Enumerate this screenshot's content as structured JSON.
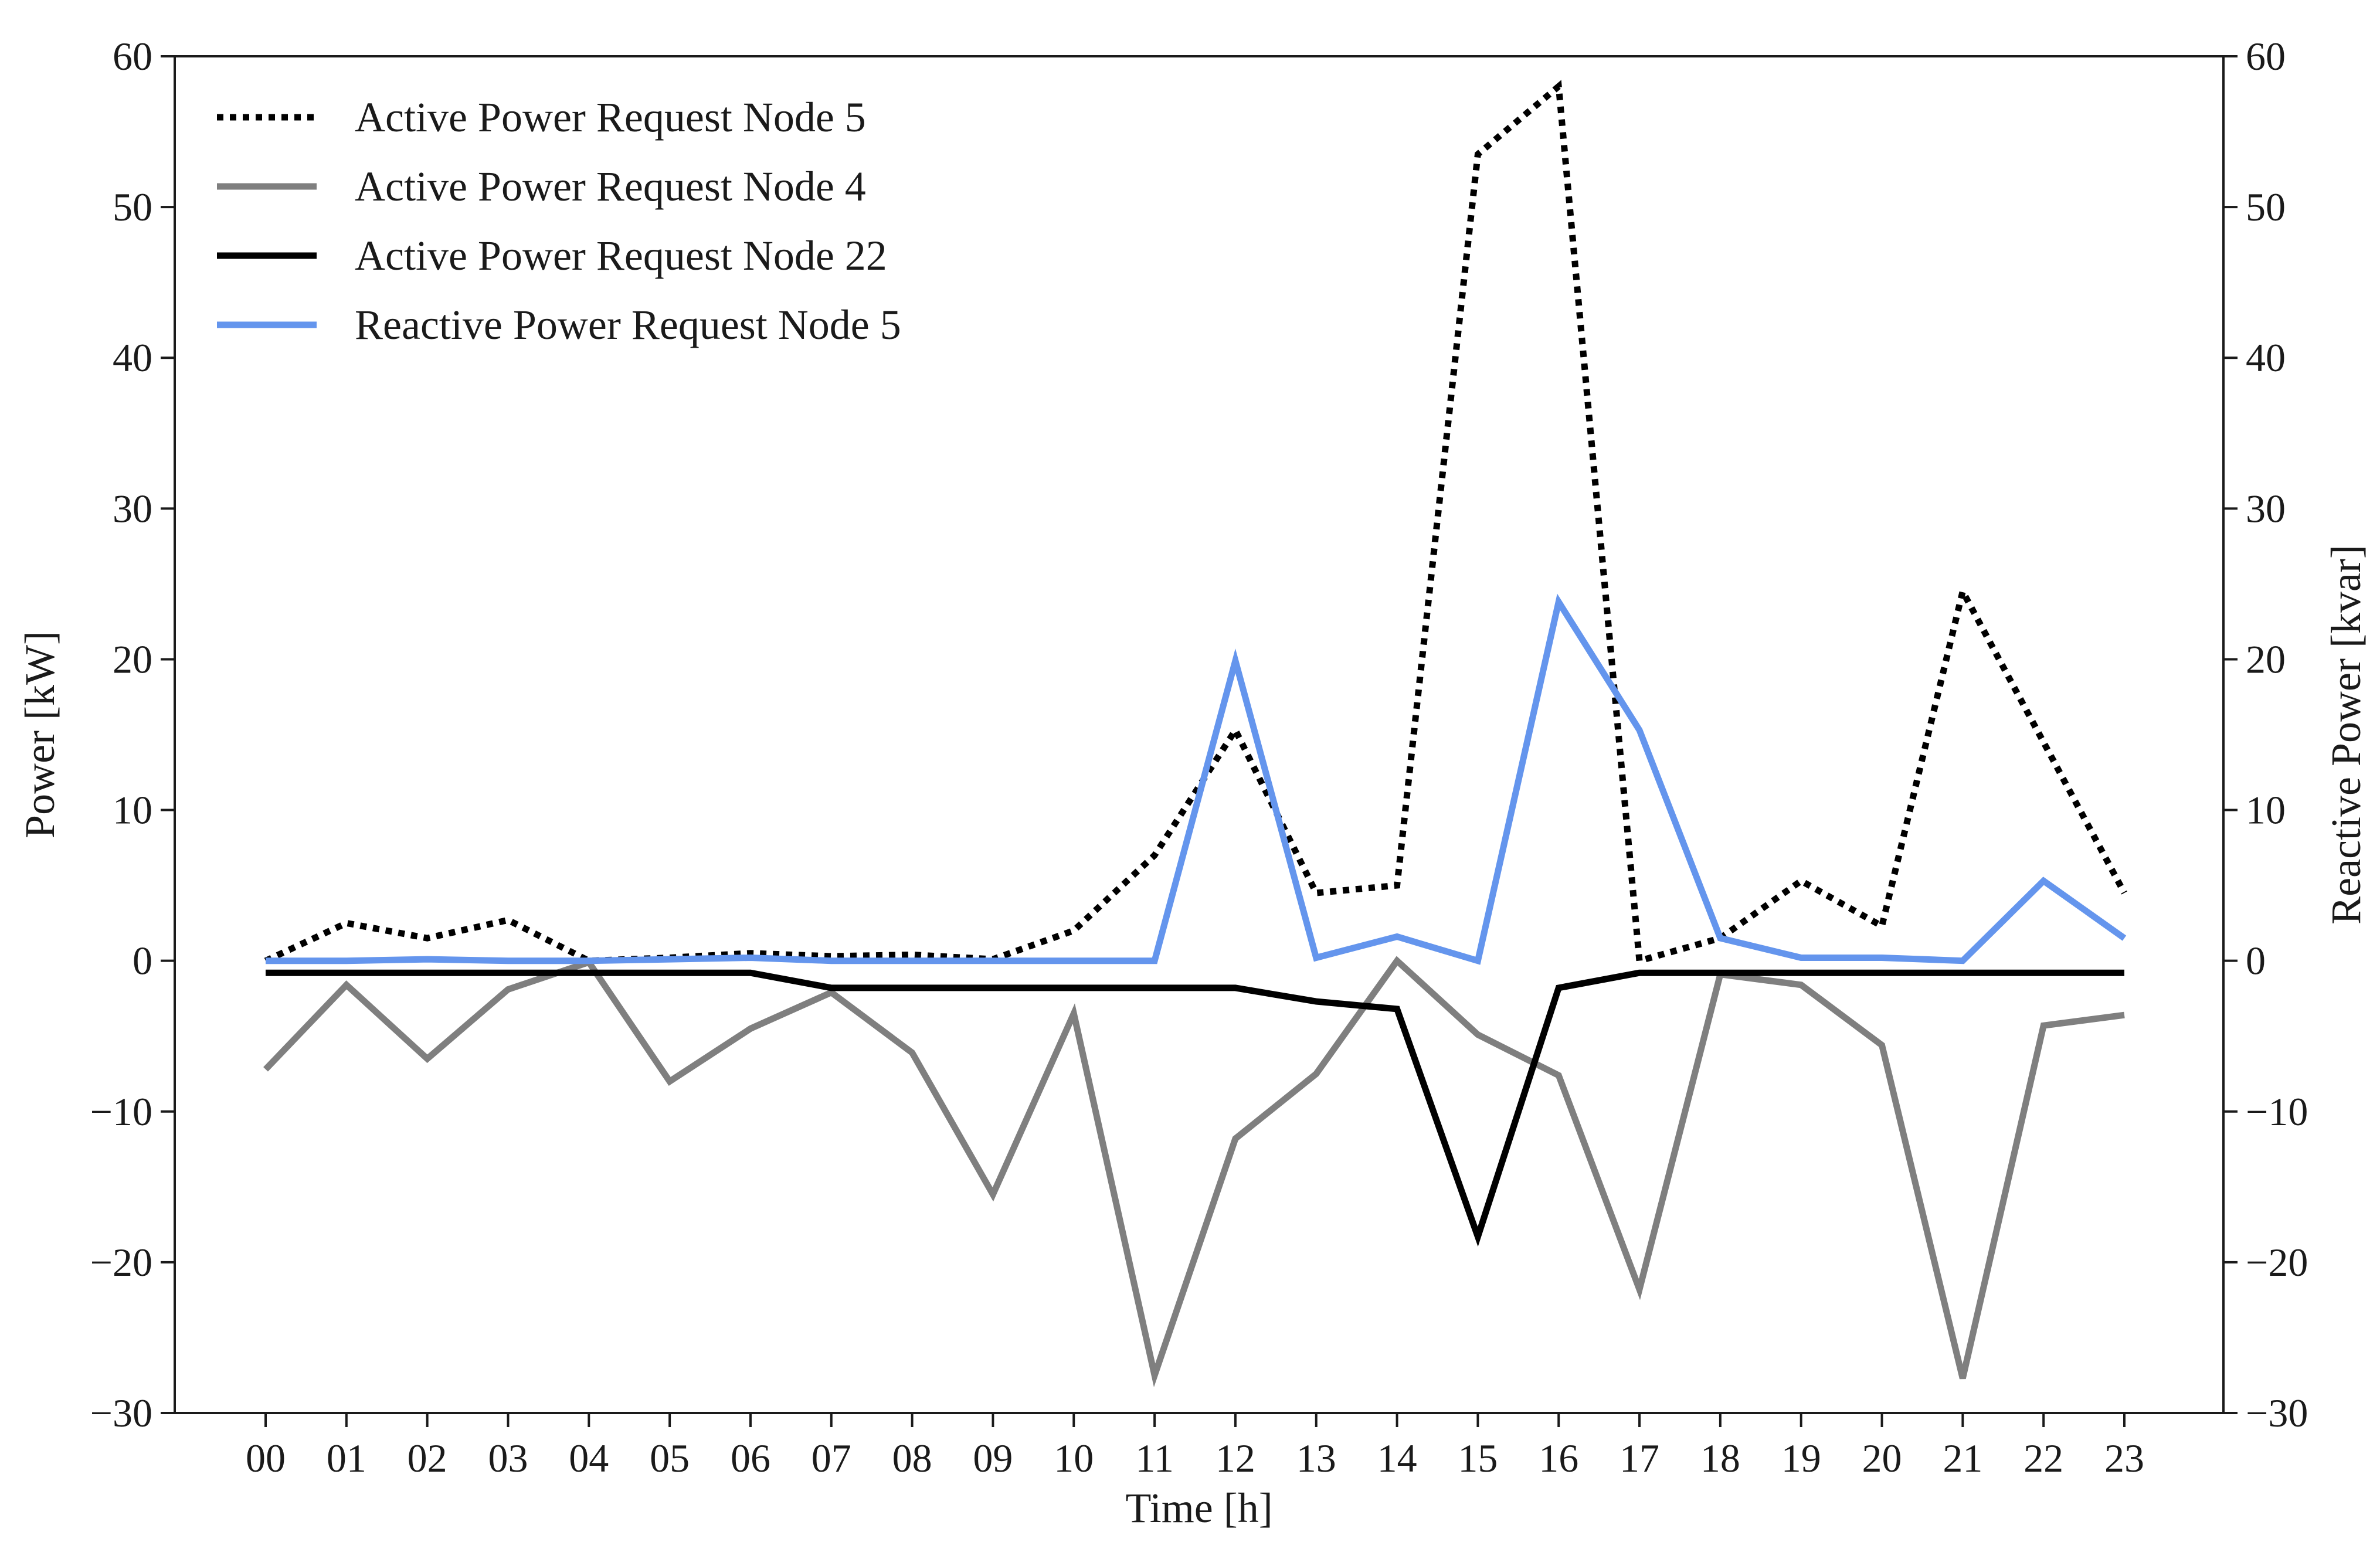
{
  "chart_data": {
    "type": "line",
    "xlabel": "Time [h]",
    "ylabel": "Power [kW]",
    "y2label": "Reactive Power [kvar]",
    "ylim": [
      -30,
      60
    ],
    "y2lim": [
      -30,
      60
    ],
    "yticks": [
      -30,
      -20,
      -10,
      0,
      10,
      20,
      30,
      40,
      50,
      60
    ],
    "ytick_labels": [
      "−30",
      "−20",
      "−10",
      "0",
      "10",
      "20",
      "30",
      "40",
      "50",
      "60"
    ],
    "categories": [
      "00",
      "01",
      "02",
      "03",
      "04",
      "05",
      "06",
      "07",
      "08",
      "09",
      "10",
      "11",
      "12",
      "13",
      "14",
      "15",
      "16",
      "17",
      "18",
      "19",
      "20",
      "21",
      "22",
      "23"
    ],
    "legend_position": "top-left",
    "series": [
      {
        "name": "Active Power Request Node 5",
        "color": "#000000",
        "style": "dotted",
        "axis": "left",
        "values": [
          0,
          2.5,
          1.5,
          2.7,
          0,
          0.2,
          0.5,
          0.3,
          0.4,
          0.1,
          2.0,
          7.0,
          15.3,
          4.5,
          5.0,
          53.5,
          58.0,
          0,
          1.5,
          5.3,
          2.3,
          24.5,
          14.5,
          4.5
        ]
      },
      {
        "name": "Active Power Request Node 4",
        "color": "#7f7f7f",
        "style": "solid",
        "axis": "left",
        "values": [
          -7.2,
          -1.6,
          -6.5,
          -1.9,
          -0.1,
          -8.0,
          -4.5,
          -2.1,
          -6.1,
          -15.5,
          -3.5,
          -27.5,
          -11.8,
          -7.5,
          0,
          -4.9,
          -7.6,
          -21.8,
          -0.9,
          -1.6,
          -5.6,
          -27.7,
          -4.3,
          -3.6
        ]
      },
      {
        "name": "Active Power Request Node 22",
        "color": "#000000",
        "style": "solid",
        "axis": "left",
        "values": [
          -0.8,
          -0.8,
          -0.8,
          -0.8,
          -0.8,
          -0.8,
          -0.8,
          -1.8,
          -1.8,
          -1.8,
          -1.8,
          -1.8,
          -1.8,
          -2.7,
          -3.2,
          -18.3,
          -1.8,
          -0.8,
          -0.8,
          -0.8,
          -0.8,
          -0.8,
          -0.8,
          -0.8
        ]
      },
      {
        "name": "Reactive Power Request Node 5",
        "color": "#6495ed",
        "style": "solid",
        "axis": "right",
        "values": [
          0,
          0,
          0.1,
          0,
          0,
          0.1,
          0.2,
          0,
          0,
          0,
          0,
          0,
          19.9,
          0.2,
          1.6,
          0,
          23.8,
          15.3,
          1.5,
          0.2,
          0.2,
          0,
          5.3,
          1.5
        ]
      }
    ]
  }
}
